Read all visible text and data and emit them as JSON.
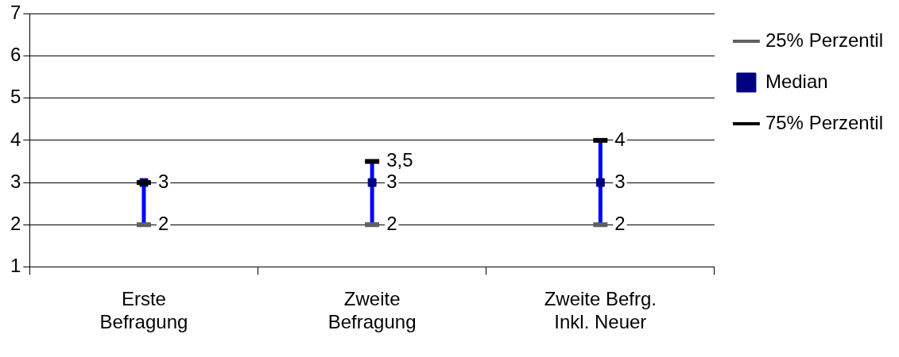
{
  "chart_data": {
    "type": "scatter",
    "categories": [
      "Erste Befragung",
      "Zweite Befragung",
      "Zweite Befrg. Inkl. Neuer"
    ],
    "series": [
      {
        "name": "25% Perzentil",
        "color": "#606060",
        "values": [
          2,
          2,
          2
        ],
        "value_labels": [
          "2",
          "2",
          "2"
        ]
      },
      {
        "name": "Median",
        "color": "#000080",
        "marker": "square",
        "values": [
          3,
          3,
          3
        ],
        "value_labels": [
          "3",
          "3",
          "3"
        ]
      },
      {
        "name": "75% Perzentil",
        "color": "#000000",
        "values": [
          3,
          3.5,
          4
        ],
        "value_labels": [
          null,
          "3,5",
          "4"
        ]
      }
    ],
    "ylim": [
      1,
      7
    ],
    "yticks": [
      1,
      2,
      3,
      4,
      5,
      6,
      7
    ],
    "grid": "y",
    "legend": "right"
  }
}
